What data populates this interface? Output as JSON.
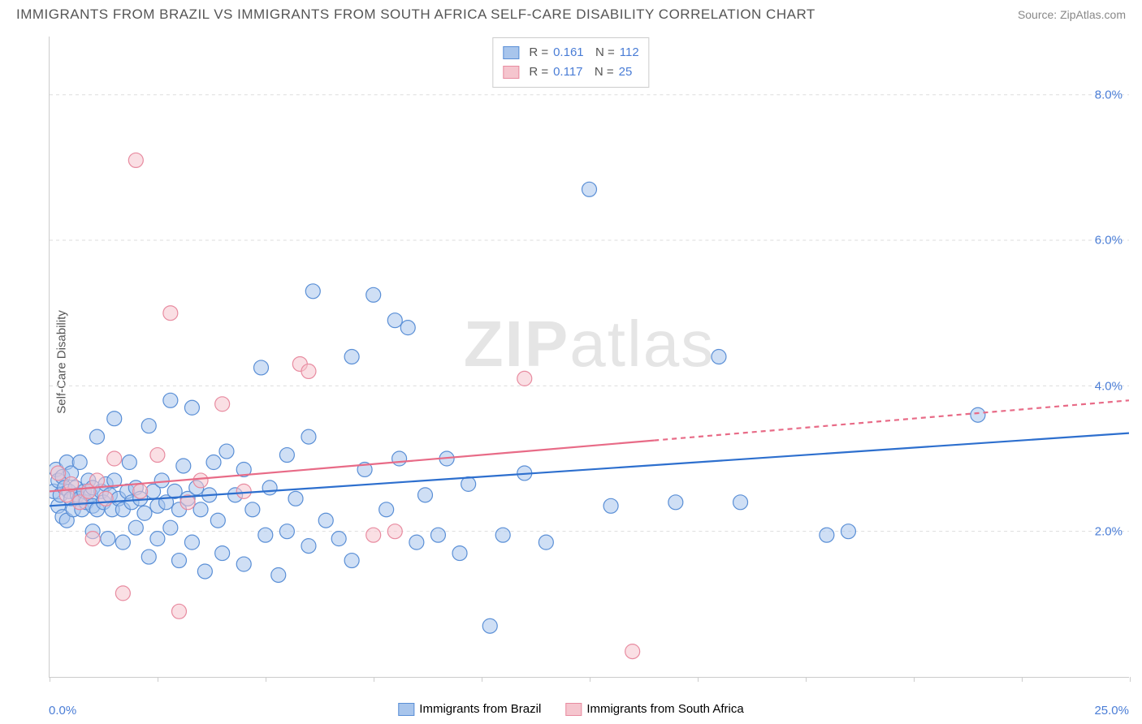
{
  "title": "IMMIGRANTS FROM BRAZIL VS IMMIGRANTS FROM SOUTH AFRICA SELF-CARE DISABILITY CORRELATION CHART",
  "source": "Source: ZipAtlas.com",
  "ylabel": "Self-Care Disability",
  "watermark_bold": "ZIP",
  "watermark_light": "atlas",
  "chart": {
    "type": "scatter",
    "xlim": [
      0,
      25
    ],
    "ylim": [
      0,
      8.8
    ],
    "x_ticks": [
      0,
      2.5,
      5,
      7.5,
      10,
      12.5,
      15,
      17.5,
      20,
      22.5,
      25
    ],
    "x_min_label": "0.0%",
    "x_max_label": "25.0%",
    "y_grid": [
      {
        "v": 2.0,
        "label": "2.0%"
      },
      {
        "v": 4.0,
        "label": "4.0%"
      },
      {
        "v": 6.0,
        "label": "6.0%"
      },
      {
        "v": 8.0,
        "label": "8.0%"
      }
    ],
    "background_color": "#ffffff",
    "grid_color": "#dddddd",
    "marker_radius": 9,
    "marker_opacity": 0.55,
    "series": [
      {
        "name": "Immigrants from Brazil",
        "r": "0.161",
        "n": "112",
        "fill": "#a8c5ec",
        "stroke": "#5a8fd6",
        "line_color": "#2d6fce",
        "trend": {
          "x1": 0,
          "y1": 2.35,
          "x2": 25,
          "y2": 3.35,
          "dash_from_x": null
        },
        "points": [
          [
            0.1,
            2.55
          ],
          [
            0.15,
            2.85
          ],
          [
            0.2,
            2.35
          ],
          [
            0.2,
            2.7
          ],
          [
            0.25,
            2.5
          ],
          [
            0.3,
            2.75
          ],
          [
            0.3,
            2.2
          ],
          [
            0.35,
            2.6
          ],
          [
            0.4,
            2.95
          ],
          [
            0.4,
            2.15
          ],
          [
            0.45,
            2.55
          ],
          [
            0.5,
            2.45
          ],
          [
            0.5,
            2.8
          ],
          [
            0.55,
            2.3
          ],
          [
            0.6,
            2.6
          ],
          [
            0.65,
            2.5
          ],
          [
            0.7,
            2.45
          ],
          [
            0.7,
            2.95
          ],
          [
            0.75,
            2.3
          ],
          [
            0.8,
            2.55
          ],
          [
            0.85,
            2.4
          ],
          [
            0.9,
            2.7
          ],
          [
            0.95,
            2.5
          ],
          [
            1.0,
            2.35
          ],
          [
            1.0,
            2.6
          ],
          [
            1.0,
            2.0
          ],
          [
            1.1,
            3.3
          ],
          [
            1.1,
            2.3
          ],
          [
            1.2,
            2.55
          ],
          [
            1.25,
            2.4
          ],
          [
            1.3,
            2.65
          ],
          [
            1.35,
            1.9
          ],
          [
            1.4,
            2.5
          ],
          [
            1.45,
            2.3
          ],
          [
            1.5,
            2.7
          ],
          [
            1.5,
            3.55
          ],
          [
            1.6,
            2.45
          ],
          [
            1.7,
            2.3
          ],
          [
            1.7,
            1.85
          ],
          [
            1.8,
            2.55
          ],
          [
            1.85,
            2.95
          ],
          [
            1.9,
            2.4
          ],
          [
            2.0,
            2.6
          ],
          [
            2.0,
            2.05
          ],
          [
            2.1,
            2.45
          ],
          [
            2.2,
            2.25
          ],
          [
            2.3,
            3.45
          ],
          [
            2.3,
            1.65
          ],
          [
            2.4,
            2.55
          ],
          [
            2.5,
            2.35
          ],
          [
            2.5,
            1.9
          ],
          [
            2.6,
            2.7
          ],
          [
            2.7,
            2.4
          ],
          [
            2.8,
            3.8
          ],
          [
            2.8,
            2.05
          ],
          [
            2.9,
            2.55
          ],
          [
            3.0,
            2.3
          ],
          [
            3.0,
            1.6
          ],
          [
            3.1,
            2.9
          ],
          [
            3.2,
            2.45
          ],
          [
            3.3,
            1.85
          ],
          [
            3.3,
            3.7
          ],
          [
            3.4,
            2.6
          ],
          [
            3.5,
            2.3
          ],
          [
            3.6,
            1.45
          ],
          [
            3.7,
            2.5
          ],
          [
            3.8,
            2.95
          ],
          [
            3.9,
            2.15
          ],
          [
            4.0,
            1.7
          ],
          [
            4.1,
            3.1
          ],
          [
            4.3,
            2.5
          ],
          [
            4.5,
            1.55
          ],
          [
            4.5,
            2.85
          ],
          [
            4.7,
            2.3
          ],
          [
            4.9,
            4.25
          ],
          [
            5.0,
            1.95
          ],
          [
            5.1,
            2.6
          ],
          [
            5.3,
            1.4
          ],
          [
            5.5,
            3.05
          ],
          [
            5.5,
            2.0
          ],
          [
            5.7,
            2.45
          ],
          [
            6.0,
            1.8
          ],
          [
            6.0,
            3.3
          ],
          [
            6.1,
            5.3
          ],
          [
            6.4,
            2.15
          ],
          [
            6.7,
            1.9
          ],
          [
            7.0,
            4.4
          ],
          [
            7.0,
            1.6
          ],
          [
            7.3,
            2.85
          ],
          [
            7.5,
            5.25
          ],
          [
            7.8,
            2.3
          ],
          [
            8.0,
            4.9
          ],
          [
            8.1,
            3.0
          ],
          [
            8.3,
            4.8
          ],
          [
            8.5,
            1.85
          ],
          [
            8.7,
            2.5
          ],
          [
            9.0,
            1.95
          ],
          [
            9.2,
            3.0
          ],
          [
            9.5,
            1.7
          ],
          [
            9.7,
            2.65
          ],
          [
            10.2,
            0.7
          ],
          [
            10.5,
            1.95
          ],
          [
            11.0,
            2.8
          ],
          [
            11.5,
            1.85
          ],
          [
            12.5,
            6.7
          ],
          [
            13.0,
            2.35
          ],
          [
            14.5,
            2.4
          ],
          [
            15.5,
            4.4
          ],
          [
            16.0,
            2.4
          ],
          [
            18.0,
            1.95
          ],
          [
            18.5,
            2.0
          ],
          [
            21.5,
            3.6
          ]
        ]
      },
      {
        "name": "Immigrants from South Africa",
        "r": "0.117",
        "n": "25",
        "fill": "#f5c5ce",
        "stroke": "#e88ba0",
        "line_color": "#e86b87",
        "trend": {
          "x1": 0,
          "y1": 2.55,
          "x2": 25,
          "y2": 3.8,
          "dash_from_x": 14.0
        },
        "points": [
          [
            0.2,
            2.8
          ],
          [
            0.4,
            2.5
          ],
          [
            0.5,
            2.65
          ],
          [
            0.7,
            2.4
          ],
          [
            0.9,
            2.55
          ],
          [
            1.0,
            1.9
          ],
          [
            1.1,
            2.7
          ],
          [
            1.3,
            2.45
          ],
          [
            1.5,
            3.0
          ],
          [
            1.7,
            1.15
          ],
          [
            2.0,
            7.1
          ],
          [
            2.1,
            2.55
          ],
          [
            2.5,
            3.05
          ],
          [
            2.8,
            5.0
          ],
          [
            3.0,
            0.9
          ],
          [
            3.2,
            2.4
          ],
          [
            3.5,
            2.7
          ],
          [
            4.0,
            3.75
          ],
          [
            4.5,
            2.55
          ],
          [
            5.8,
            4.3
          ],
          [
            6.0,
            4.2
          ],
          [
            7.5,
            1.95
          ],
          [
            8.0,
            2.0
          ],
          [
            11.0,
            4.1
          ],
          [
            13.5,
            0.35
          ]
        ]
      }
    ]
  },
  "legend_bottom": [
    {
      "label": "Immigrants from Brazil",
      "fill": "#a8c5ec",
      "stroke": "#5a8fd6"
    },
    {
      "label": "Immigrants from South Africa",
      "fill": "#f5c5ce",
      "stroke": "#e88ba0"
    }
  ]
}
